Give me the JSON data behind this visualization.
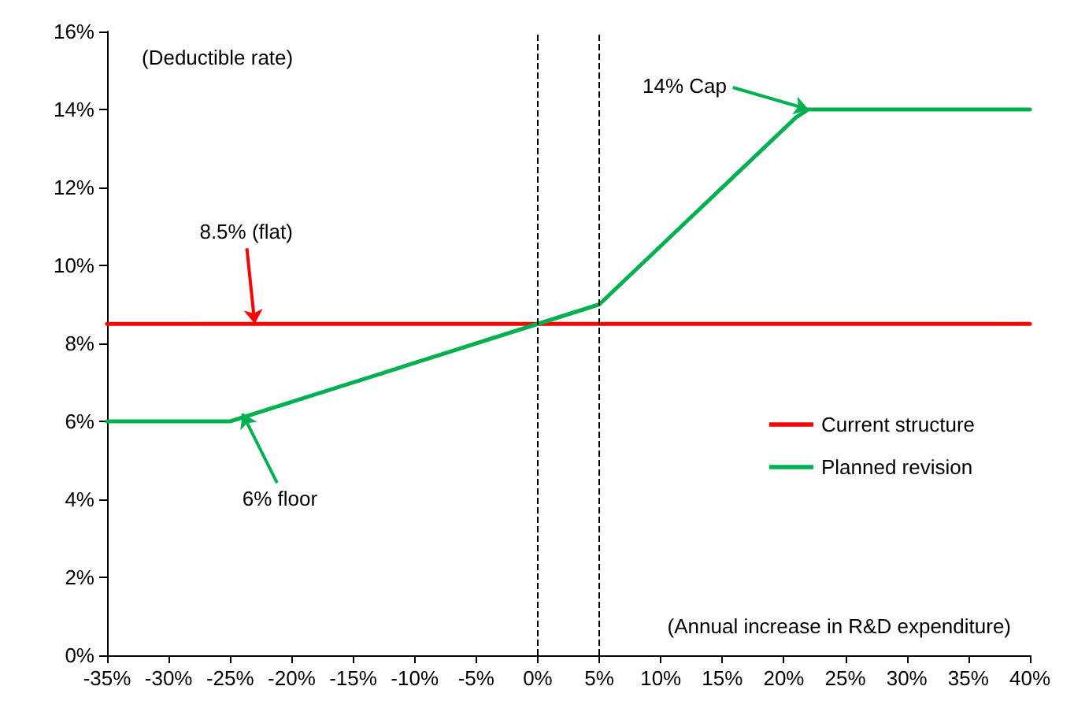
{
  "chart_data": {
    "type": "line",
    "xlim": [
      -35,
      40
    ],
    "ylim": [
      0,
      16
    ],
    "xticks": [
      {
        "value": -35,
        "label": "-35%"
      },
      {
        "value": -30,
        "label": "-30%"
      },
      {
        "value": -25,
        "label": "-25%"
      },
      {
        "value": -20,
        "label": "-20%"
      },
      {
        "value": -15,
        "label": "-15%"
      },
      {
        "value": -10,
        "label": "-10%"
      },
      {
        "value": -5,
        "label": "-5%"
      },
      {
        "value": 0,
        "label": "0%"
      },
      {
        "value": 5,
        "label": "5%"
      },
      {
        "value": 10,
        "label": "10%"
      },
      {
        "value": 15,
        "label": "15%"
      },
      {
        "value": 20,
        "label": "20%"
      },
      {
        "value": 25,
        "label": "25%"
      },
      {
        "value": 30,
        "label": "30%"
      },
      {
        "value": 35,
        "label": "35%"
      },
      {
        "value": 40,
        "label": "40%"
      }
    ],
    "yticks": [
      {
        "value": 0,
        "label": "0%"
      },
      {
        "value": 2,
        "label": "2%"
      },
      {
        "value": 4,
        "label": "4%"
      },
      {
        "value": 6,
        "label": "6%"
      },
      {
        "value": 8,
        "label": "8%"
      },
      {
        "value": 10,
        "label": "10%"
      },
      {
        "value": 12,
        "label": "12%"
      },
      {
        "value": 14,
        "label": "14%"
      },
      {
        "value": 16,
        "label": "16%"
      }
    ],
    "series": [
      {
        "name": "Current structure",
        "color": "#ff0000",
        "x": [
          -35,
          40
        ],
        "values": [
          8.5,
          8.5
        ]
      },
      {
        "name": "Planned revision",
        "color": "#00b050",
        "x": [
          -35,
          -25,
          0,
          5,
          21,
          22,
          40
        ],
        "values": [
          6,
          6,
          8.5,
          9,
          13.8,
          14,
          14
        ]
      }
    ],
    "ref_lines": [
      {
        "axis": "x",
        "value": 0,
        "label": null,
        "color": "#000000",
        "line_style": "dashed"
      },
      {
        "axis": "x",
        "value": 5,
        "label": null,
        "color": "#000000",
        "line_style": "dashed"
      }
    ],
    "annotations": [
      "(Deductible rate)",
      "(Annual increase in R&D expenditure)",
      {
        "text": "8.5% (flat)",
        "x": -23,
        "y": 8.5
      },
      {
        "text": "14% Cap",
        "x": 22,
        "y": 14
      },
      {
        "text": "6% floor",
        "x": -24,
        "y": 6.2
      }
    ],
    "legend": "right",
    "grid": false,
    "marker": "none",
    "line_style": "solid"
  }
}
